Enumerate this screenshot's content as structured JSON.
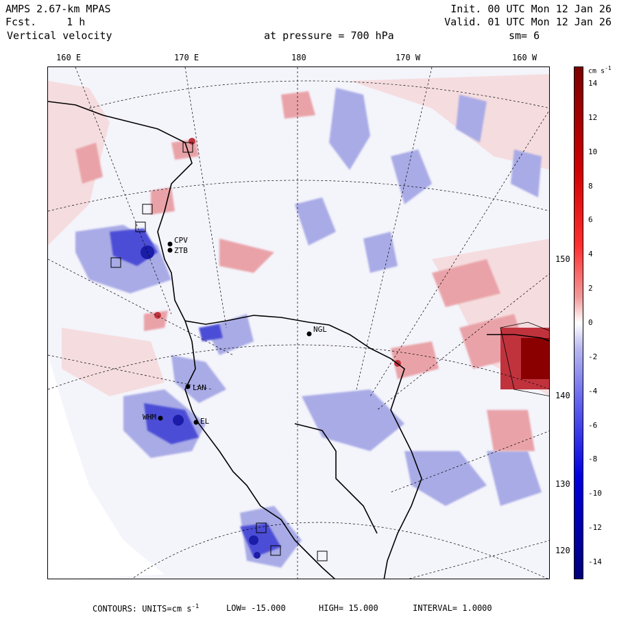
{
  "header": {
    "model": "AMPS 2.67-km MPAS",
    "fcst_label": "Fcst.",
    "fcst_value": "1 h",
    "field": "Vertical velocity",
    "pressure_label": "at pressure =",
    "pressure_value": "700 hPa",
    "init": "Init. 00 UTC Mon 12 Jan 26",
    "valid": "Valid. 01 UTC Mon 12 Jan 26",
    "smoothing": "sm= 6"
  },
  "longitude_labels": [
    "160 E",
    "170 E",
    "180",
    "170 W",
    "160 W"
  ],
  "latitude_labels": [
    "150 W",
    "140 W",
    "130 W",
    "120 W"
  ],
  "colorbar": {
    "units_text": "cm s",
    "units_sup": "-1",
    "ticks": [
      "14",
      "12",
      "10",
      "8",
      "6",
      "4",
      "2",
      "0",
      "-2",
      "-4",
      "-6",
      "-8",
      "-10",
      "-12",
      "-14"
    ],
    "values": [
      14,
      12,
      10,
      8,
      6,
      4,
      2,
      0,
      -2,
      -4,
      -6,
      -8,
      -10,
      -12,
      -14
    ],
    "min": -15,
    "max": 15,
    "high_color": "#7a0000",
    "zero_color": "#ffffff",
    "low_color": "#00007a"
  },
  "stations": [
    {
      "name": "CPV"
    },
    {
      "name": "ZTB"
    },
    {
      "name": "NGL"
    },
    {
      "name": "LAN"
    },
    {
      "name": "WHM"
    },
    {
      "name": "EL"
    }
  ],
  "footer": {
    "contours_label": "CONTOURS:",
    "units_label": "UNITS=cm s",
    "units_sup": "-1",
    "low_label": "LOW=",
    "low_value": "-15.000",
    "high_label": "HIGH=",
    "high_value": "15.000",
    "interval_label": "INTERVAL=",
    "interval_value": "1.0000"
  },
  "colors": {
    "updraft": "#e9a3a8",
    "downdraft": "#a9abe6",
    "neutral": "#f4f4fb",
    "strong_down": "#2a2bd0",
    "strong_up": "#8a0000"
  }
}
